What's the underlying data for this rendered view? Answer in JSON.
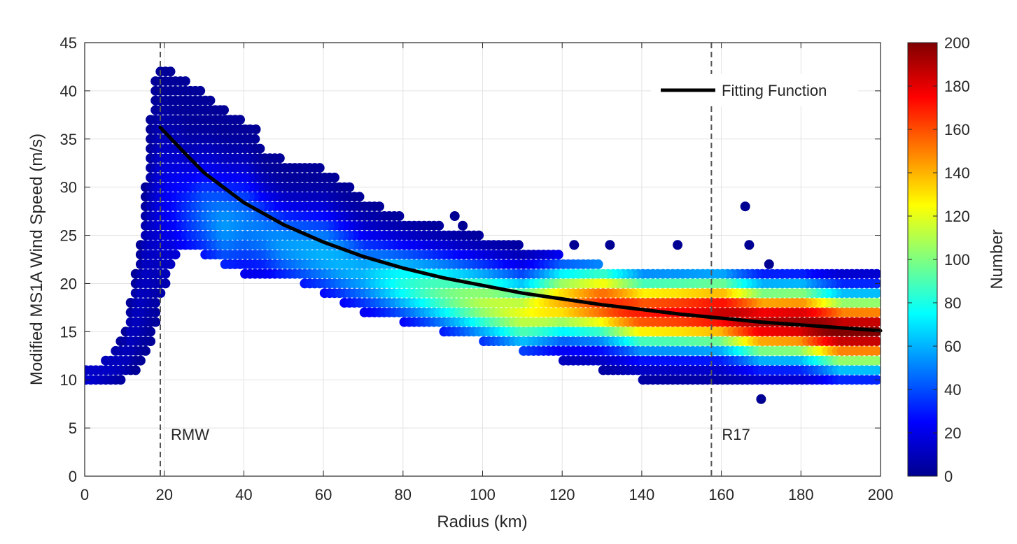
{
  "chart_data": {
    "type": "scatter",
    "subtype": "density-colored scatter with fitted curve",
    "xlabel": "Radius (km)",
    "ylabel": "Modified MS1A Wind Speed (m/s)",
    "xlim": [
      0,
      200
    ],
    "ylim": [
      0,
      45
    ],
    "x_ticks": [
      0,
      20,
      40,
      60,
      80,
      100,
      120,
      140,
      160,
      180,
      200
    ],
    "y_ticks": [
      0,
      5,
      10,
      15,
      20,
      25,
      30,
      35,
      40,
      45
    ],
    "x_tick_labels": [
      "0",
      "20",
      "40",
      "60",
      "80",
      "100",
      "120",
      "140",
      "160",
      "180",
      "200"
    ],
    "y_tick_labels": [
      "0",
      "5",
      "10",
      "15",
      "20",
      "25",
      "30",
      "35",
      "40",
      "45"
    ],
    "grid": true,
    "colorbar": {
      "label": "Number",
      "min": 0,
      "max": 200,
      "ticks": [
        0,
        20,
        40,
        60,
        80,
        100,
        120,
        140,
        160,
        180,
        200
      ],
      "tick_labels": [
        "0",
        "20",
        "40",
        "60",
        "80",
        "100",
        "120",
        "140",
        "160",
        "180",
        "200"
      ],
      "colormap": "jet"
    },
    "legend": {
      "entries": [
        "Fitting Function"
      ],
      "placement": "top-right"
    },
    "fitting_function": {
      "name": "Fitting Function",
      "color": "#000000",
      "x": [
        19,
        25,
        30,
        40,
        50,
        60,
        70,
        80,
        90,
        100,
        110,
        120,
        130,
        140,
        150,
        160,
        170,
        180,
        190,
        200
      ],
      "y": [
        36.2,
        33.6,
        31.5,
        28.4,
        26.1,
        24.3,
        22.8,
        21.6,
        20.6,
        19.8,
        19.0,
        18.4,
        17.8,
        17.3,
        16.8,
        16.4,
        16.0,
        15.7,
        15.4,
        15.1
      ]
    },
    "vertical_lines": [
      {
        "label": "RMW",
        "x": 19,
        "style": "dashed"
      },
      {
        "label": "R17",
        "x": 157.5,
        "style": "dashed"
      }
    ],
    "density_band": {
      "description": "Upper/lower envelope and densest wind-speed level of the scatter cloud (m/s) vs radius (km)",
      "x": [
        0,
        5,
        10,
        14,
        17,
        19,
        22,
        26,
        30,
        35,
        40,
        45,
        50,
        60,
        70,
        80,
        90,
        100,
        110,
        120,
        130,
        140,
        150,
        160,
        170,
        180,
        190,
        200
      ],
      "upper": [
        11,
        12,
        15,
        24,
        40,
        43,
        42,
        41,
        40,
        38,
        37,
        34,
        33,
        32,
        29,
        27,
        26,
        25,
        24,
        23,
        22,
        21,
        21,
        21,
        21,
        21,
        21,
        21
      ],
      "lower": [
        10,
        10,
        10,
        11,
        14,
        18,
        22,
        24,
        23,
        22,
        21,
        21,
        21,
        19,
        17,
        16,
        15,
        14,
        13,
        12,
        11,
        10,
        10,
        10,
        10,
        10,
        10,
        10
      ],
      "mode": [
        10,
        11,
        12,
        18,
        26,
        28,
        28,
        27,
        27,
        26,
        26,
        25,
        24,
        23,
        21,
        20,
        19,
        18,
        17,
        18,
        18,
        17,
        17,
        17,
        16,
        16,
        15,
        15
      ],
      "peak_count": [
        15,
        12,
        10,
        10,
        12,
        18,
        25,
        35,
        45,
        55,
        50,
        50,
        55,
        60,
        60,
        80,
        95,
        110,
        120,
        140,
        165,
        170,
        175,
        185,
        190,
        195,
        200,
        200
      ]
    },
    "outliers": [
      {
        "x": 166,
        "y": 28
      },
      {
        "x": 167,
        "y": 24
      },
      {
        "x": 170,
        "y": 8
      },
      {
        "x": 149,
        "y": 24
      },
      {
        "x": 132,
        "y": 24
      },
      {
        "x": 123,
        "y": 24
      },
      {
        "x": 93,
        "y": 27
      },
      {
        "x": 95,
        "y": 26
      },
      {
        "x": 43,
        "y": 36
      },
      {
        "x": 35,
        "y": 38
      },
      {
        "x": 172,
        "y": 22
      }
    ]
  }
}
